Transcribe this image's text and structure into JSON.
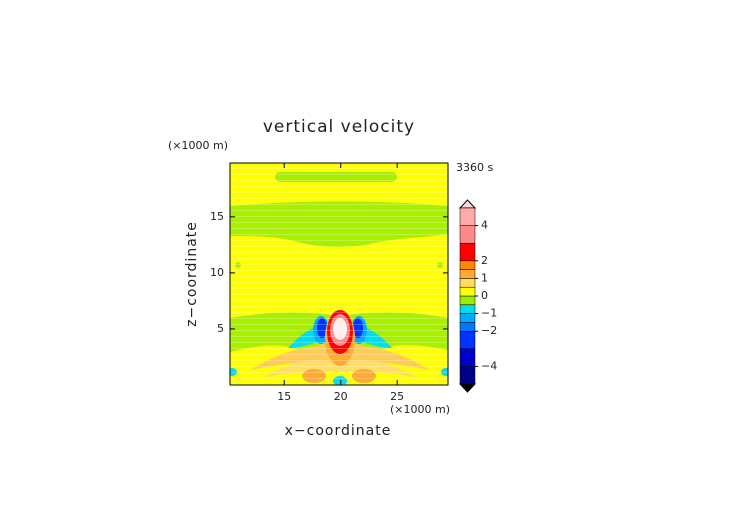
{
  "chart_data": {
    "type": "contour",
    "title": "vertical velocity",
    "time_label": "3360 s",
    "x_label": "x−coordinate",
    "y_label": "z−coordinate",
    "x_unit": "(×1000 m)",
    "y_unit": "(×1000 m)",
    "xlim": [
      10.2,
      29.5
    ],
    "xticks": [
      15,
      20,
      25
    ],
    "ylim": [
      0,
      19.8
    ],
    "yticks": [
      5,
      10,
      15
    ],
    "colorbar": {
      "levels": [
        -5,
        -4,
        -3,
        -2,
        -1.5,
        -1,
        -0.5,
        0,
        0.5,
        1,
        1.5,
        2,
        3,
        4,
        5
      ],
      "colors": [
        "#000088",
        "#0000cc",
        "#0033ff",
        "#0077ff",
        "#00aaff",
        "#00ddee",
        "#99ee00",
        "#ffff00",
        "#ffdd55",
        "#ffaa33",
        "#ff8800",
        "#ff0000",
        "#ff8888",
        "#ffaaaa"
      ],
      "ticks": [
        {
          "value": -4,
          "label": "−4"
        },
        {
          "value": -2,
          "label": "−2"
        },
        {
          "value": -1,
          "label": "−1"
        },
        0,
        1,
        2,
        4
      ]
    }
  }
}
